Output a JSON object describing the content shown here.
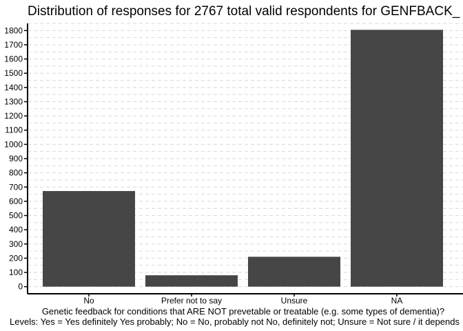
{
  "chart_data": {
    "type": "bar",
    "title": "Distribution of responses for 2767 total valid respondents for GENFBACK_",
    "xlabel": "Genetic feedback for conditions that ARE NOT prevetable or treatable (e.g. some types of dementia)?",
    "xlabel2": "Levels: Yes = Yes definitely Yes probably; No =  No, probably not No, definitely not; Unsure = Not sure / it depends",
    "ylabel": "",
    "categories": [
      "No",
      "Prefer not to say",
      "Unsure",
      "NA"
    ],
    "values": [
      672,
      80,
      210,
      1805
    ],
    "ylim": [
      -50,
      1850
    ],
    "yticks": [
      0,
      100,
      200,
      300,
      400,
      500,
      600,
      700,
      800,
      900,
      1000,
      1100,
      1200,
      1300,
      1400,
      1500,
      1600,
      1700,
      1800
    ],
    "grid": true,
    "bar_color": "#464646",
    "grid_color": "#d9d9d9"
  }
}
